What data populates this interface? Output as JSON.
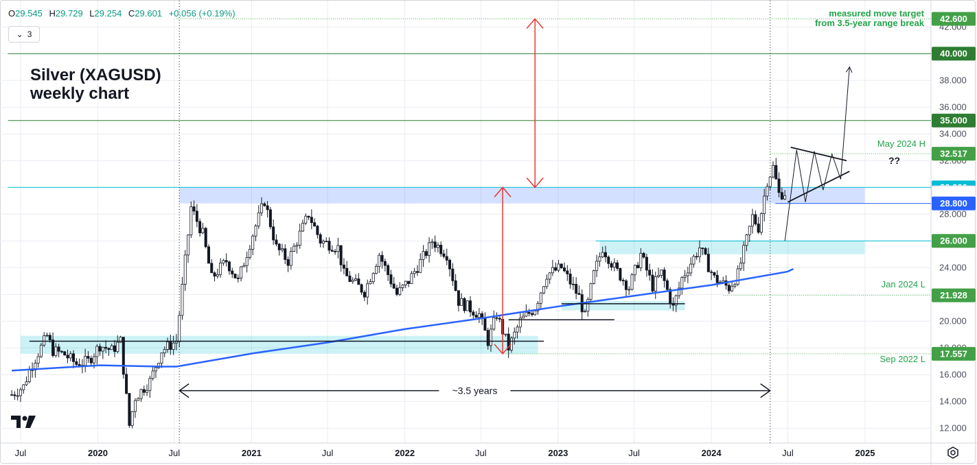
{
  "header": {
    "ohlc": [
      {
        "k": "O",
        "v": "29.545"
      },
      {
        "k": "H",
        "v": "29.729"
      },
      {
        "k": "L",
        "v": "29.254"
      },
      {
        "k": "C",
        "v": "29.601"
      }
    ],
    "change": "+0.056 (+0.19%)",
    "collapse_count": "3"
  },
  "chart_data": {
    "type": "candlestick",
    "title": "Silver (XAGUSD)\nweekly chart",
    "ylim": [
      11,
      43
    ],
    "yticks": [
      "12.000",
      "14.000",
      "16.000",
      "18.000",
      "20.000",
      "22.000",
      "24.000",
      "26.000",
      "28.000",
      "30.000",
      "32.000",
      "34.000",
      "36.000",
      "38.000",
      "40.000",
      "42.000"
    ],
    "xticks": [
      {
        "label": "Jul",
        "date": "2019-07-01",
        "bold": false
      },
      {
        "label": "2020",
        "date": "2020-01-01",
        "bold": true
      },
      {
        "label": "Jul",
        "date": "2020-07-01",
        "bold": false
      },
      {
        "label": "2021",
        "date": "2021-01-01",
        "bold": true
      },
      {
        "label": "Jul",
        "date": "2021-07-01",
        "bold": false
      },
      {
        "label": "2022",
        "date": "2022-01-01",
        "bold": true
      },
      {
        "label": "Jul",
        "date": "2022-07-01",
        "bold": false
      },
      {
        "label": "2023",
        "date": "2023-01-01",
        "bold": true
      },
      {
        "label": "Jul",
        "date": "2023-07-01",
        "bold": false
      },
      {
        "label": "2024",
        "date": "2024-01-01",
        "bold": true
      },
      {
        "label": "Jul",
        "date": "2024-07-01",
        "bold": false
      },
      {
        "label": "2025",
        "date": "2025-01-01",
        "bold": true
      }
    ],
    "price_path": [
      [
        "2019-06-10",
        14.5
      ],
      [
        "2019-07-08",
        15.1
      ],
      [
        "2019-07-22",
        16.3
      ],
      [
        "2019-08-05",
        17.2
      ],
      [
        "2019-09-02",
        18.9
      ],
      [
        "2019-09-16",
        17.8
      ],
      [
        "2019-10-14",
        17.5
      ],
      [
        "2019-11-11",
        16.8
      ],
      [
        "2019-12-09",
        17.0
      ],
      [
        "2020-01-06",
        18.2
      ],
      [
        "2020-02-03",
        17.8
      ],
      [
        "2020-02-24",
        18.5
      ],
      [
        "2020-03-16",
        12.2
      ],
      [
        "2020-03-30",
        14.3
      ],
      [
        "2020-05-04",
        15.5
      ],
      [
        "2020-06-01",
        17.8
      ],
      [
        "2020-07-06",
        18.5
      ],
      [
        "2020-07-27",
        24.5
      ],
      [
        "2020-08-10",
        28.5
      ],
      [
        "2020-09-07",
        26.5
      ],
      [
        "2020-09-28",
        23.2
      ],
      [
        "2020-11-02",
        24.5
      ],
      [
        "2020-11-30",
        23.0
      ],
      [
        "2021-01-04",
        26.5
      ],
      [
        "2021-02-01",
        29.0
      ],
      [
        "2021-03-01",
        25.5
      ],
      [
        "2021-03-29",
        24.5
      ],
      [
        "2021-04-26",
        26.5
      ],
      [
        "2021-05-17",
        28.0
      ],
      [
        "2021-06-14",
        26.0
      ],
      [
        "2021-07-26",
        25.5
      ],
      [
        "2021-08-09",
        23.5
      ],
      [
        "2021-09-27",
        22.2
      ],
      [
        "2021-11-01",
        25.0
      ],
      [
        "2021-12-13",
        22.0
      ],
      [
        "2022-01-10",
        23.0
      ],
      [
        "2022-02-28",
        25.5
      ],
      [
        "2022-03-07",
        26.0
      ],
      [
        "2022-04-11",
        25.0
      ],
      [
        "2022-05-09",
        21.5
      ],
      [
        "2022-06-27",
        20.5
      ],
      [
        "2022-07-18",
        18.5
      ],
      [
        "2022-08-08",
        20.5
      ],
      [
        "2022-09-05",
        18.0
      ],
      [
        "2022-10-03",
        20.0
      ],
      [
        "2022-11-07",
        21.0
      ],
      [
        "2022-12-05",
        23.5
      ],
      [
        "2023-01-09",
        24.0
      ],
      [
        "2023-02-20",
        21.8
      ],
      [
        "2023-03-06",
        20.3
      ],
      [
        "2023-03-27",
        23.5
      ],
      [
        "2023-04-17",
        25.5
      ],
      [
        "2023-05-15",
        24.0
      ],
      [
        "2023-06-19",
        22.5
      ],
      [
        "2023-07-17",
        25.0
      ],
      [
        "2023-08-14",
        22.6
      ],
      [
        "2023-09-04",
        23.6
      ],
      [
        "2023-10-02",
        21.0
      ],
      [
        "2023-10-23",
        23.2
      ],
      [
        "2023-12-04",
        25.5
      ],
      [
        "2024-01-08",
        23.2
      ],
      [
        "2024-02-12",
        22.5
      ],
      [
        "2024-03-04",
        23.5
      ],
      [
        "2024-04-08",
        27.8
      ],
      [
        "2024-04-22",
        27.0
      ],
      [
        "2024-05-13",
        30.5
      ],
      [
        "2024-05-27",
        31.5
      ],
      [
        "2024-06-10",
        29.5
      ],
      [
        "2024-06-24",
        29.6
      ]
    ],
    "ma_path": [
      [
        "2019-06-10",
        16.3
      ],
      [
        "2020-01-06",
        16.7
      ],
      [
        "2020-06-01",
        16.6
      ],
      [
        "2020-07-06",
        16.6
      ],
      [
        "2021-01-06",
        17.6
      ],
      [
        "2021-07-01",
        18.4
      ],
      [
        "2022-01-01",
        19.4
      ],
      [
        "2022-07-01",
        20.2
      ],
      [
        "2023-01-01",
        21.1
      ],
      [
        "2023-07-01",
        21.9
      ],
      [
        "2024-01-01",
        22.7
      ],
      [
        "2024-06-30",
        23.7
      ],
      [
        "2024-07-14",
        23.9
      ]
    ],
    "horizontal_lines": [
      {
        "price": 42.6,
        "color": "#4caf50",
        "style": "dotted",
        "from": "2020-07-06"
      },
      {
        "price": 40.0,
        "color": "#2e7d32",
        "style": "solid",
        "from": "2019-06-01"
      },
      {
        "price": 35.0,
        "color": "#2e7d32",
        "style": "solid",
        "from": "2019-06-01"
      },
      {
        "price": 32.517,
        "color": "#4caf50",
        "style": "dotted",
        "from": "2024-05-20"
      },
      {
        "price": 30.0,
        "color": "#00bcd4",
        "style": "solid",
        "from": "2019-06-01"
      },
      {
        "price": 28.8,
        "color": "#2962ff",
        "style": "solid",
        "from": "2024-06-01"
      },
      {
        "price": 26.0,
        "color": "#00bcd4",
        "style": "solid",
        "from": "2023-04-01"
      },
      {
        "price": 21.928,
        "color": "#4caf50",
        "style": "dotted",
        "from": "2024-01-29"
      },
      {
        "price": 17.557,
        "color": "#4caf50",
        "style": "dotted",
        "from": "2022-08-29"
      }
    ],
    "zones": [
      {
        "from": "2020-07-13",
        "to": "2024-12-31",
        "low": 28.8,
        "high": 30.0,
        "color": "#2962ff"
      },
      {
        "from": "2019-07-01",
        "to": "2022-11-14",
        "low": 17.557,
        "high": 18.9,
        "color": "#00bcd4"
      },
      {
        "from": "2023-04-10",
        "to": "2024-12-31",
        "low": 25.0,
        "high": 26.0,
        "color": "#00bcd4"
      },
      {
        "from": "2023-01-09",
        "to": "2023-10-30",
        "low": 20.8,
        "high": 21.5,
        "color": "#00bcd4"
      }
    ],
    "support_lines": [
      {
        "price": 18.5,
        "from": "2019-07-22",
        "to": "2022-11-28"
      },
      {
        "price": 20.1,
        "from": "2022-09-05",
        "to": "2023-05-15"
      },
      {
        "price": 21.3,
        "from": "2023-01-09",
        "to": "2023-10-30"
      }
    ],
    "axis_tags": [
      {
        "price": 42.6,
        "label": "42.600",
        "color": "#43a047"
      },
      {
        "price": 40.0,
        "label": "40.000",
        "color": "#2e7d32"
      },
      {
        "price": 35.0,
        "label": "35.000",
        "color": "#2e7d32"
      },
      {
        "price": 32.517,
        "label": "32.517",
        "color": "#43a047"
      },
      {
        "price": 30.0,
        "label": "30.000",
        "color": "#00bcd4"
      },
      {
        "price": 29.601,
        "label": "29.601",
        "color": "#ffffff",
        "text": "#131722"
      },
      {
        "price": 28.8,
        "label": "28.800",
        "color": "#2962ff"
      },
      {
        "price": 26.0,
        "label": "26.000",
        "color": "#43a047"
      },
      {
        "price": 21.928,
        "label": "21.928",
        "color": "#43a047"
      },
      {
        "price": 17.557,
        "label": "17.557",
        "color": "#43a047"
      }
    ],
    "annotations": {
      "target_line1": "measured move target",
      "target_line2": "from 3.5-year range break",
      "may_high": "May 2024 H",
      "jan_low": "Jan 2024 L",
      "sep_low": "Sep 2022 L",
      "duration": "~3.5 years",
      "question": "??"
    },
    "pattern": {
      "upper_line": [
        [
          "2024-07-08",
          33.0
        ],
        [
          "2024-11-18",
          32.0
        ]
      ],
      "lower_line": [
        [
          "2024-07-01",
          28.9
        ],
        [
          "2024-11-25",
          31.2
        ]
      ],
      "zigzag": [
        [
          "2024-06-24",
          26.0
        ],
        [
          "2024-07-22",
          32.8
        ],
        [
          "2024-08-12",
          28.9
        ],
        [
          "2024-09-02",
          32.7
        ],
        [
          "2024-09-23",
          29.8
        ],
        [
          "2024-10-14",
          32.5
        ],
        [
          "2024-11-04",
          30.6
        ],
        [
          "2024-11-25",
          39.0
        ]
      ],
      "upper_line_start_offset_days": 0
    },
    "measured_move": [
      {
        "x": "2022-08-22",
        "from": 17.557,
        "to": 30.0,
        "color": "#e53935"
      },
      {
        "x": "2022-11-07",
        "from": 30.0,
        "to": 42.6,
        "color": "#e53935"
      }
    ],
    "timespan": {
      "from": "2020-07-13",
      "to": "2024-05-20",
      "price": 14.8
    },
    "dotted_verticals": [
      "2020-07-13",
      "2024-05-20"
    ]
  },
  "branding": {
    "logo": "TV",
    "settings_icon": "settings-icon"
  }
}
